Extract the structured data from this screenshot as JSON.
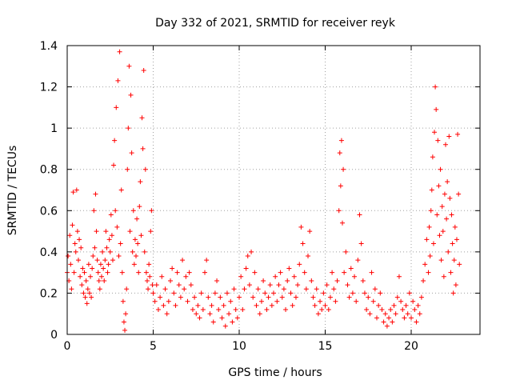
{
  "chart_data": {
    "type": "scatter",
    "title": "Day 332 of 2021, SRMTID for receiver reyk",
    "xlabel": "GPS time / hours",
    "ylabel": "SRMTID / TECUs",
    "xlim": [
      0,
      24
    ],
    "ylim": [
      0,
      1.4
    ],
    "x_ticks": [
      0,
      5,
      10,
      15,
      20
    ],
    "x_tick_labels": [
      "0",
      "5",
      "10",
      "15",
      "20"
    ],
    "y_ticks": [
      0,
      0.2,
      0.4,
      0.6,
      0.8,
      1,
      1.2,
      1.4
    ],
    "y_tick_labels": [
      "0",
      "0.2",
      "0.4",
      "0.6",
      "0.8",
      "1",
      "1.2",
      "1.4"
    ],
    "grid": true,
    "marker": "+",
    "color": "#ff0000",
    "series": [
      {
        "name": "reyk",
        "points": [
          [
            0.0,
            0.3
          ],
          [
            0.05,
            0.38
          ],
          [
            0.1,
            0.26
          ],
          [
            0.15,
            0.48
          ],
          [
            0.2,
            0.34
          ],
          [
            0.25,
            0.22
          ],
          [
            0.3,
            0.53
          ],
          [
            0.35,
            0.69
          ],
          [
            0.4,
            0.3
          ],
          [
            0.45,
            0.44
          ],
          [
            0.5,
            0.4
          ],
          [
            0.55,
            0.7
          ],
          [
            0.6,
            0.5
          ],
          [
            0.65,
            0.36
          ],
          [
            0.7,
            0.46
          ],
          [
            0.75,
            0.28
          ],
          [
            0.8,
            0.42
          ],
          [
            0.85,
            0.24
          ],
          [
            0.9,
            0.32
          ],
          [
            0.95,
            0.2
          ],
          [
            1.0,
            0.3
          ],
          [
            1.05,
            0.18
          ],
          [
            1.1,
            0.26
          ],
          [
            1.15,
            0.15
          ],
          [
            1.2,
            0.22
          ],
          [
            1.25,
            0.34
          ],
          [
            1.3,
            0.2
          ],
          [
            1.35,
            0.28
          ],
          [
            1.4,
            0.18
          ],
          [
            1.45,
            0.32
          ],
          [
            1.5,
            0.38
          ],
          [
            1.55,
            0.6
          ],
          [
            1.6,
            0.42
          ],
          [
            1.65,
            0.68
          ],
          [
            1.7,
            0.5
          ],
          [
            1.75,
            0.36
          ],
          [
            1.8,
            0.3
          ],
          [
            1.85,
            0.26
          ],
          [
            1.9,
            0.22
          ],
          [
            1.95,
            0.34
          ],
          [
            2.0,
            0.28
          ],
          [
            2.05,
            0.4
          ],
          [
            2.1,
            0.32
          ],
          [
            2.15,
            0.26
          ],
          [
            2.2,
            0.36
          ],
          [
            2.25,
            0.5
          ],
          [
            2.3,
            0.42
          ],
          [
            2.35,
            0.3
          ],
          [
            2.4,
            0.34
          ],
          [
            2.45,
            0.46
          ],
          [
            2.5,
            0.4
          ],
          [
            2.55,
            0.58
          ],
          [
            2.6,
            0.48
          ],
          [
            2.65,
            0.36
          ],
          [
            2.7,
            0.82
          ],
          [
            2.75,
            0.94
          ],
          [
            2.8,
            0.6
          ],
          [
            2.85,
            1.1
          ],
          [
            2.9,
            0.52
          ],
          [
            2.95,
            1.23
          ],
          [
            3.0,
            0.38
          ],
          [
            3.05,
            1.37
          ],
          [
            3.1,
            0.44
          ],
          [
            3.15,
            0.7
          ],
          [
            3.2,
            0.3
          ],
          [
            3.25,
            0.16
          ],
          [
            3.3,
            0.06
          ],
          [
            3.35,
            0.02
          ],
          [
            3.4,
            0.1
          ],
          [
            3.45,
            0.22
          ],
          [
            3.5,
            0.8
          ],
          [
            3.55,
            1.0
          ],
          [
            3.6,
            1.3
          ],
          [
            3.65,
            0.5
          ],
          [
            3.7,
            1.16
          ],
          [
            3.75,
            0.88
          ],
          [
            3.8,
            0.4
          ],
          [
            3.85,
            0.6
          ],
          [
            3.9,
            0.34
          ],
          [
            3.95,
            0.46
          ],
          [
            4.0,
            0.38
          ],
          [
            4.05,
            0.56
          ],
          [
            4.1,
            0.44
          ],
          [
            4.15,
            0.3
          ],
          [
            4.2,
            0.62
          ],
          [
            4.25,
            0.74
          ],
          [
            4.3,
            0.48
          ],
          [
            4.35,
            1.05
          ],
          [
            4.4,
            0.9
          ],
          [
            4.45,
            1.28
          ],
          [
            4.5,
            0.4
          ],
          [
            4.55,
            0.8
          ],
          [
            4.6,
            0.3
          ],
          [
            4.65,
            0.26
          ],
          [
            4.7,
            0.22
          ],
          [
            4.75,
            0.34
          ],
          [
            4.8,
            0.28
          ],
          [
            4.85,
            0.5
          ],
          [
            4.9,
            0.6
          ],
          [
            4.95,
            0.24
          ],
          [
            5.0,
            0.2
          ],
          [
            5.1,
            0.16
          ],
          [
            5.2,
            0.24
          ],
          [
            5.3,
            0.12
          ],
          [
            5.4,
            0.18
          ],
          [
            5.5,
            0.28
          ],
          [
            5.6,
            0.14
          ],
          [
            5.7,
            0.22
          ],
          [
            5.8,
            0.1
          ],
          [
            5.9,
            0.16
          ],
          [
            6.0,
            0.26
          ],
          [
            6.1,
            0.32
          ],
          [
            6.2,
            0.2
          ],
          [
            6.3,
            0.14
          ],
          [
            6.4,
            0.3
          ],
          [
            6.5,
            0.24
          ],
          [
            6.6,
            0.18
          ],
          [
            6.7,
            0.36
          ],
          [
            6.8,
            0.22
          ],
          [
            6.9,
            0.28
          ],
          [
            7.0,
            0.16
          ],
          [
            7.1,
            0.3
          ],
          [
            7.2,
            0.24
          ],
          [
            7.3,
            0.12
          ],
          [
            7.4,
            0.18
          ],
          [
            7.5,
            0.1
          ],
          [
            7.6,
            0.14
          ],
          [
            7.7,
            0.08
          ],
          [
            7.8,
            0.2
          ],
          [
            7.9,
            0.12
          ],
          [
            8.0,
            0.3
          ],
          [
            8.1,
            0.36
          ],
          [
            8.2,
            0.18
          ],
          [
            8.3,
            0.1
          ],
          [
            8.4,
            0.14
          ],
          [
            8.5,
            0.06
          ],
          [
            8.6,
            0.2
          ],
          [
            8.7,
            0.26
          ],
          [
            8.8,
            0.12
          ],
          [
            8.9,
            0.18
          ],
          [
            9.0,
            0.08
          ],
          [
            9.1,
            0.14
          ],
          [
            9.2,
            0.04
          ],
          [
            9.3,
            0.2
          ],
          [
            9.4,
            0.1
          ],
          [
            9.5,
            0.16
          ],
          [
            9.6,
            0.06
          ],
          [
            9.7,
            0.22
          ],
          [
            9.8,
            0.12
          ],
          [
            9.9,
            0.08
          ],
          [
            10.0,
            0.18
          ],
          [
            10.1,
            0.28
          ],
          [
            10.2,
            0.12
          ],
          [
            10.3,
            0.22
          ],
          [
            10.4,
            0.32
          ],
          [
            10.5,
            0.38
          ],
          [
            10.6,
            0.24
          ],
          [
            10.7,
            0.4
          ],
          [
            10.8,
            0.18
          ],
          [
            10.9,
            0.3
          ],
          [
            11.0,
            0.14
          ],
          [
            11.1,
            0.22
          ],
          [
            11.2,
            0.1
          ],
          [
            11.3,
            0.16
          ],
          [
            11.4,
            0.26
          ],
          [
            11.5,
            0.2
          ],
          [
            11.6,
            0.12
          ],
          [
            11.7,
            0.18
          ],
          [
            11.8,
            0.24
          ],
          [
            11.9,
            0.14
          ],
          [
            12.0,
            0.2
          ],
          [
            12.1,
            0.28
          ],
          [
            12.2,
            0.16
          ],
          [
            12.3,
            0.24
          ],
          [
            12.4,
            0.3
          ],
          [
            12.5,
            0.18
          ],
          [
            12.6,
            0.22
          ],
          [
            12.7,
            0.12
          ],
          [
            12.8,
            0.26
          ],
          [
            12.9,
            0.32
          ],
          [
            13.0,
            0.2
          ],
          [
            13.1,
            0.14
          ],
          [
            13.2,
            0.28
          ],
          [
            13.3,
            0.18
          ],
          [
            13.4,
            0.24
          ],
          [
            13.5,
            0.34
          ],
          [
            13.6,
            0.52
          ],
          [
            13.7,
            0.44
          ],
          [
            13.8,
            0.3
          ],
          [
            13.9,
            0.22
          ],
          [
            14.0,
            0.38
          ],
          [
            14.1,
            0.5
          ],
          [
            14.2,
            0.26
          ],
          [
            14.3,
            0.18
          ],
          [
            14.4,
            0.14
          ],
          [
            14.5,
            0.22
          ],
          [
            14.6,
            0.1
          ],
          [
            14.7,
            0.16
          ],
          [
            14.8,
            0.12
          ],
          [
            14.9,
            0.2
          ],
          [
            15.0,
            0.14
          ],
          [
            15.1,
            0.24
          ],
          [
            15.2,
            0.12
          ],
          [
            15.3,
            0.18
          ],
          [
            15.4,
            0.3
          ],
          [
            15.5,
            0.22
          ],
          [
            15.6,
            0.16
          ],
          [
            15.7,
            0.26
          ],
          [
            15.8,
            0.6
          ],
          [
            15.85,
            0.88
          ],
          [
            15.9,
            0.72
          ],
          [
            15.95,
            0.94
          ],
          [
            16.0,
            0.54
          ],
          [
            16.05,
            0.8
          ],
          [
            16.1,
            0.3
          ],
          [
            16.2,
            0.4
          ],
          [
            16.3,
            0.24
          ],
          [
            16.4,
            0.18
          ],
          [
            16.5,
            0.32
          ],
          [
            16.6,
            0.2
          ],
          [
            16.7,
            0.28
          ],
          [
            16.8,
            0.16
          ],
          [
            16.9,
            0.36
          ],
          [
            17.0,
            0.58
          ],
          [
            17.1,
            0.44
          ],
          [
            17.2,
            0.26
          ],
          [
            17.3,
            0.2
          ],
          [
            17.4,
            0.12
          ],
          [
            17.5,
            0.18
          ],
          [
            17.6,
            0.1
          ],
          [
            17.7,
            0.3
          ],
          [
            17.8,
            0.16
          ],
          [
            17.9,
            0.22
          ],
          [
            18.0,
            0.08
          ],
          [
            18.1,
            0.14
          ],
          [
            18.2,
            0.2
          ],
          [
            18.3,
            0.12
          ],
          [
            18.4,
            0.06
          ],
          [
            18.5,
            0.1
          ],
          [
            18.6,
            0.04
          ],
          [
            18.7,
            0.08
          ],
          [
            18.8,
            0.12
          ],
          [
            18.9,
            0.06
          ],
          [
            19.0,
            0.14
          ],
          [
            19.1,
            0.1
          ],
          [
            19.2,
            0.18
          ],
          [
            19.3,
            0.28
          ],
          [
            19.4,
            0.16
          ],
          [
            19.5,
            0.12
          ],
          [
            19.6,
            0.08
          ],
          [
            19.7,
            0.14
          ],
          [
            19.8,
            0.1
          ],
          [
            19.9,
            0.2
          ],
          [
            20.0,
            0.08
          ],
          [
            20.1,
            0.16
          ],
          [
            20.2,
            0.12
          ],
          [
            20.3,
            0.06
          ],
          [
            20.4,
            0.14
          ],
          [
            20.5,
            0.1
          ],
          [
            20.6,
            0.18
          ],
          [
            20.7,
            0.26
          ],
          [
            20.8,
            0.34
          ],
          [
            20.9,
            0.46
          ],
          [
            21.0,
            0.3
          ],
          [
            21.05,
            0.52
          ],
          [
            21.1,
            0.38
          ],
          [
            21.15,
            0.6
          ],
          [
            21.2,
            0.7
          ],
          [
            21.25,
            0.86
          ],
          [
            21.3,
            0.44
          ],
          [
            21.35,
            0.98
          ],
          [
            21.4,
            1.2
          ],
          [
            21.45,
            1.09
          ],
          [
            21.5,
            0.58
          ],
          [
            21.55,
            0.94
          ],
          [
            21.6,
            0.72
          ],
          [
            21.65,
            0.48
          ],
          [
            21.7,
            0.8
          ],
          [
            21.75,
            0.36
          ],
          [
            21.8,
            0.62
          ],
          [
            21.85,
            0.5
          ],
          [
            21.9,
            0.28
          ],
          [
            21.95,
            0.68
          ],
          [
            22.0,
            0.92
          ],
          [
            22.05,
            0.56
          ],
          [
            22.1,
            0.74
          ],
          [
            22.15,
            0.4
          ],
          [
            22.2,
            0.96
          ],
          [
            22.25,
            0.66
          ],
          [
            22.3,
            0.3
          ],
          [
            22.35,
            0.58
          ],
          [
            22.4,
            0.44
          ],
          [
            22.45,
            0.2
          ],
          [
            22.5,
            0.36
          ],
          [
            22.55,
            0.52
          ],
          [
            22.6,
            0.24
          ],
          [
            22.65,
            0.46
          ],
          [
            22.7,
            0.97
          ],
          [
            22.75,
            0.68
          ],
          [
            22.8,
            0.34
          ]
        ]
      }
    ]
  }
}
